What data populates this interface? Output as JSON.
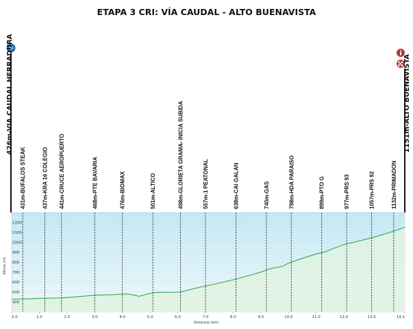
{
  "chart_data": {
    "type": "area",
    "title": "ETAPA 3 CRI: VÍA CAUDAL - ALTO BUENAVISTA",
    "xlabel": "Distancia  (km)",
    "ylabel": "Altura (m)",
    "xlim": [
      0,
      14.2
    ],
    "ylim": [
      300,
      1300
    ],
    "x_ticks": [
      "0.0",
      "1.0",
      "2.0",
      "3.0",
      "4.0",
      "5.0",
      "6.0",
      "7.0",
      "8.0",
      "9.0",
      "10.0",
      "11.0",
      "12.0",
      "13.0",
      "14.2"
    ],
    "y_ticks": [
      "400",
      "500",
      "600",
      "700",
      "800",
      "900",
      "1000",
      "1100",
      "1200"
    ],
    "grid": true,
    "start_label": "426m-VIA CAUDAL HERRADURA",
    "finish_label": "1151m-ALTO BUENAVISTA",
    "start_icon": "play-arrow-icon",
    "finish_icons": [
      "info-icon",
      "checkered-flag-icon"
    ],
    "colors": {
      "line": "#3fae5c",
      "fill": "#dff2e4",
      "sky_top": "#c3e8f5",
      "sky_bottom": "#eef8fb",
      "start_icon": "#1f6fb2",
      "finish_icon": "#b23a3a"
    },
    "series": [
      {
        "x": [
          0,
          0.5,
          1.0,
          1.35,
          1.6,
          1.8,
          2.2,
          2.6,
          3.0,
          3.2,
          3.5,
          4.0,
          4.2,
          4.5,
          4.6,
          4.8,
          5.0,
          5.2,
          5.6,
          6.0,
          6.2,
          6.6,
          7.0,
          7.5,
          8.0,
          8.5,
          9.0,
          9.3,
          9.8,
          10.0,
          10.5,
          11.0,
          11.3,
          11.6,
          12.0,
          12.5,
          13.0,
          13.5,
          14.0,
          14.2
        ],
        "y": [
          426,
          431,
          435,
          437,
          439,
          441,
          448,
          458,
          468,
          470,
          472,
          478,
          480,
          465,
          455,
          472,
          486,
          495,
          497,
          498,
          506,
          535,
          560,
          590,
          623,
          660,
          700,
          732,
          760,
          790,
          838,
          883,
          899,
          935,
          977,
          1010,
          1045,
          1085,
          1130,
          1151
        ]
      }
    ],
    "waypoints": [
      {
        "km": 0.4,
        "label": "431m-BUFALOS  STEAK"
      },
      {
        "km": 1.2,
        "label": "437m-KRA 16 COLEGIO"
      },
      {
        "km": 1.8,
        "label": "441m-CRUCE  AEROPUERTO"
      },
      {
        "km": 3.0,
        "label": "468m-PTE BAVARIA"
      },
      {
        "km": 4.0,
        "label": "476m-BIOMAX"
      },
      {
        "km": 5.1,
        "label": "501m-ALTICO"
      },
      {
        "km": 6.1,
        "label": "498m-GLORIETA  GRAMA- INICIA  SUBIDA"
      },
      {
        "km": 7.0,
        "label": "557m-1 PEATONAL"
      },
      {
        "km": 8.1,
        "label": "638m-CAI GALAN"
      },
      {
        "km": 9.2,
        "label": "740m-GAS"
      },
      {
        "km": 10.1,
        "label": "798m-HDA PARAISO"
      },
      {
        "km": 11.2,
        "label": "899m-PTO G"
      },
      {
        "km": 12.1,
        "label": "977m-PRS 93"
      },
      {
        "km": 13.0,
        "label": "1057m-PRS 92"
      },
      {
        "km": 13.8,
        "label": "1132m-PRIMADON"
      }
    ]
  }
}
